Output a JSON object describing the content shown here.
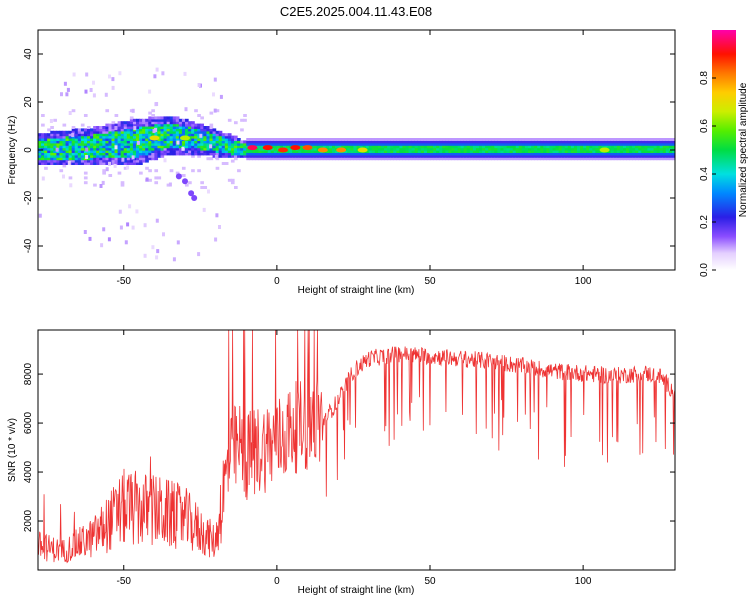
{
  "title": "C2E5.2025.004.11.43.E08",
  "colors": {
    "axis": "#000000",
    "snr_line": "#ee3333",
    "background": "#ffffff",
    "spectrogram_dark": "#1a0066"
  },
  "colorbar": {
    "label": "Normalized spectral amplitude",
    "ticks": [
      "0.0",
      "0.2",
      "0.4",
      "0.6",
      "0.8"
    ],
    "tick_values": [
      0.0,
      0.2,
      0.4,
      0.6,
      0.8
    ],
    "range": [
      0,
      1
    ]
  },
  "chart_data": [
    {
      "type": "heatmap",
      "xlabel": "Height of straight line (km)",
      "ylabel": "Frequency (Hz)",
      "xlim": [
        -78,
        130
      ],
      "ylim": [
        -50,
        50
      ],
      "x_ticks": [
        -50,
        0,
        50,
        100
      ],
      "x_tick_labels": [
        "-50",
        "0",
        "50",
        "100"
      ],
      "y_ticks": [
        -40,
        -20,
        0,
        20,
        40
      ],
      "y_tick_labels": [
        "-40",
        "-20",
        "0",
        "20",
        "40"
      ],
      "band": [
        {
          "x": -78,
          "center": 0,
          "halfwidth": 4
        },
        {
          "x": -60,
          "center": 1,
          "halfwidth": 5
        },
        {
          "x": -45,
          "center": 3,
          "halfwidth": 6
        },
        {
          "x": -35,
          "center": 6,
          "halfwidth": 5
        },
        {
          "x": -25,
          "center": 4,
          "halfwidth": 4
        },
        {
          "x": -15,
          "center": 1,
          "halfwidth": 3
        },
        {
          "x": -10,
          "center": 0,
          "halfwidth": 2
        },
        {
          "x": 130,
          "center": 0,
          "halfwidth": 2
        }
      ],
      "peaks": [
        {
          "x": -8,
          "y": 1,
          "amp": 0.95
        },
        {
          "x": -3,
          "y": 1,
          "amp": 0.9
        },
        {
          "x": 2,
          "y": 0,
          "amp": 0.88
        },
        {
          "x": 6,
          "y": 1,
          "amp": 0.9
        },
        {
          "x": 10,
          "y": 1,
          "amp": 0.85
        },
        {
          "x": 15,
          "y": 0,
          "amp": 0.8
        },
        {
          "x": 21,
          "y": 0,
          "amp": 0.8
        },
        {
          "x": 28,
          "y": 0,
          "amp": 0.7
        },
        {
          "x": 107,
          "y": 0,
          "amp": 0.65
        },
        {
          "x": -40,
          "y": 5,
          "amp": 0.7
        },
        {
          "x": -30,
          "y": 5,
          "amp": 0.65
        }
      ]
    },
    {
      "type": "line",
      "xlabel": "Height of straight line (km)",
      "ylabel": "SNR (10 * v/v)",
      "xlim": [
        -78,
        130
      ],
      "ylim": [
        0,
        9800
      ],
      "x_ticks": [
        -50,
        0,
        50,
        100
      ],
      "x_tick_labels": [
        "-50",
        "0",
        "50",
        "100"
      ],
      "y_ticks": [
        2000,
        4000,
        6000,
        8000
      ],
      "y_tick_labels": [
        "2000",
        "4000",
        "6000",
        "8000"
      ],
      "series": [
        {
          "name": "SNR",
          "x": [
            -78,
            -70,
            -60,
            -50,
            -40,
            -30,
            -20,
            -17,
            -15,
            -12,
            -10,
            -5,
            0,
            5,
            10,
            15,
            20,
            25,
            30,
            35,
            40,
            50,
            60,
            70,
            80,
            90,
            100,
            110,
            120,
            125,
            130
          ],
          "values": [
            900,
            700,
            1200,
            2300,
            2200,
            1900,
            1000,
            3500,
            4800,
            5000,
            4600,
            5000,
            5200,
            5800,
            5900,
            6100,
            7000,
            8200,
            8700,
            8800,
            8900,
            8800,
            8700,
            8600,
            8400,
            8200,
            8100,
            8000,
            8100,
            8000,
            7300
          ]
        }
      ]
    }
  ]
}
